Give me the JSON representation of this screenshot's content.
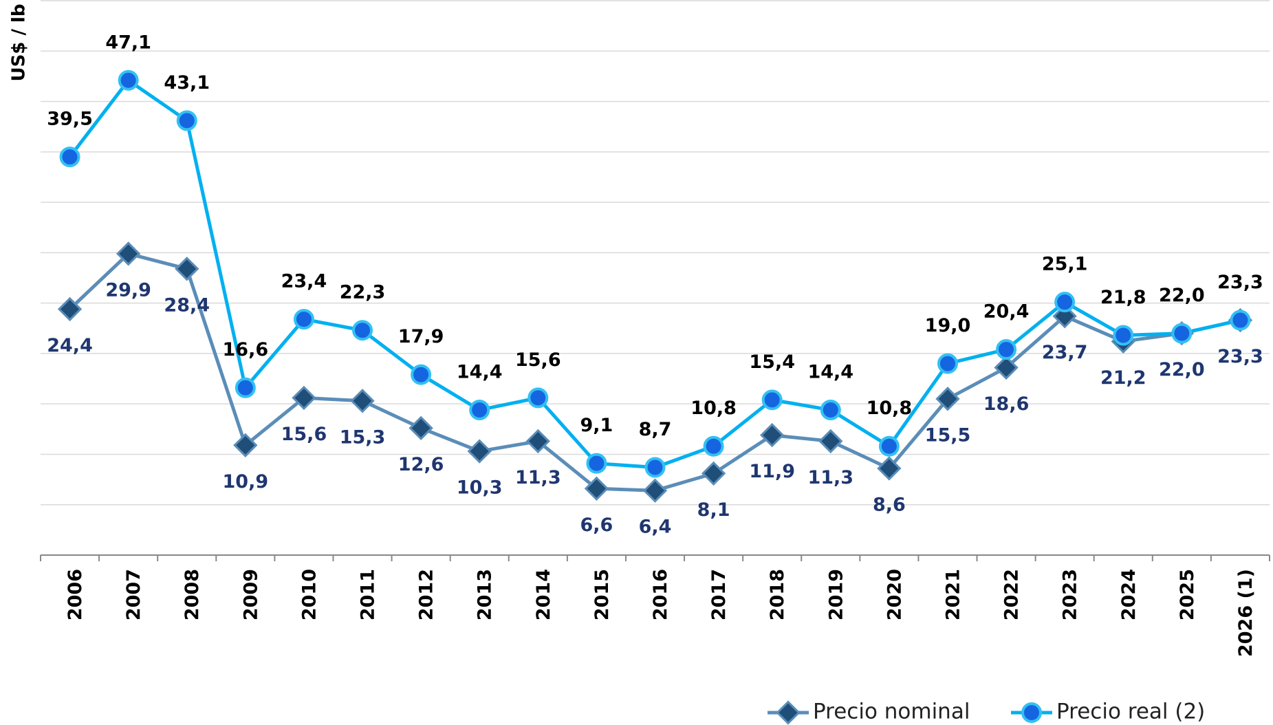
{
  "chart_data": {
    "type": "line",
    "y_label": "US$ / lb",
    "categories": [
      "2006",
      "2007",
      "2008",
      "2009",
      "2010",
      "2011",
      "2012",
      "2013",
      "2014",
      "2015",
      "2016",
      "2017",
      "2018",
      "2019",
      "2020",
      "2021",
      "2022",
      "2023",
      "2024",
      "2025",
      "2026 (1)"
    ],
    "series": [
      {
        "name": "Precio nominal",
        "color": "#5b8db8",
        "marker_color": "#1f4e79",
        "label_color": "#1f3670",
        "values": [
          24.4,
          29.9,
          28.4,
          10.9,
          15.6,
          15.3,
          12.6,
          10.3,
          11.3,
          6.6,
          6.4,
          8.1,
          11.9,
          11.3,
          8.6,
          15.5,
          18.6,
          23.7,
          21.2,
          22.0,
          23.3
        ],
        "value_labels": [
          "24,4",
          "29,9",
          "28,4",
          "10,9",
          "15,6",
          "15,3",
          "12,6",
          "10,3",
          "11,3",
          "6,6",
          "6,4",
          "8,1",
          "11,9",
          "11,3",
          "8,6",
          "15,5",
          "18,6",
          "23,7",
          "21,2",
          "22,0",
          "23,3"
        ]
      },
      {
        "name": "Precio real (2)",
        "color": "#00b0f0",
        "marker_color": "#1565e0",
        "label_color": "#000000",
        "values": [
          39.5,
          47.1,
          43.1,
          16.6,
          23.4,
          22.3,
          17.9,
          14.4,
          15.6,
          9.1,
          8.7,
          10.8,
          15.4,
          14.4,
          10.8,
          19.0,
          20.4,
          25.1,
          21.8,
          22.0,
          23.3
        ],
        "value_labels": [
          "39,5",
          "47,1",
          "43,1",
          "16,6",
          "23,4",
          "22,3",
          "17,9",
          "14,4",
          "15,6",
          "9,1",
          "8,7",
          "10,8",
          "15,4",
          "14,4",
          "10,8",
          "19,0",
          "20,4",
          "25,1",
          "21,8",
          "22,0",
          "23,3"
        ]
      }
    ],
    "ylim": [
      0,
      55
    ],
    "yticks": [
      0,
      5,
      10,
      15,
      20,
      25,
      30,
      35,
      40,
      45,
      50,
      55
    ],
    "grid": true,
    "legend": "bottom"
  }
}
